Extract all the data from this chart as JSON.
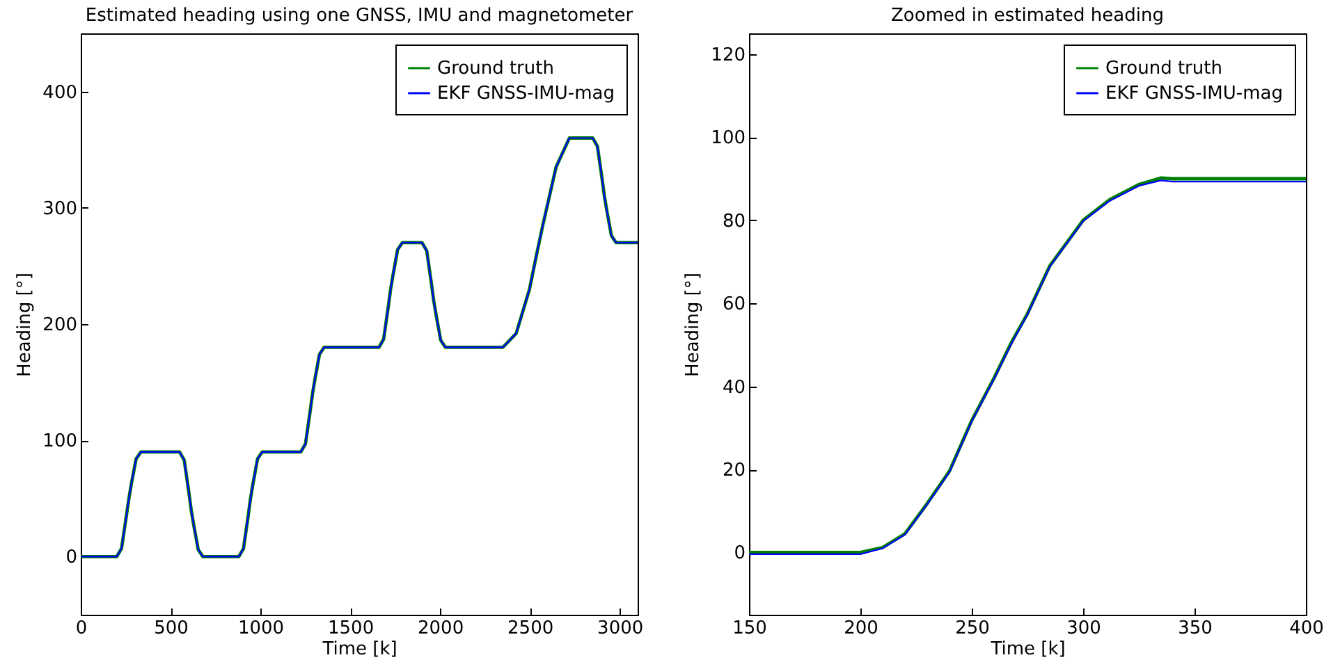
{
  "chart_data": [
    {
      "type": "line",
      "title": "Estimated heading using one GNSS, IMU and magnetometer",
      "xlabel": "Time [k]",
      "ylabel": "Heading [°]",
      "xlim": [
        0,
        3100
      ],
      "xticks": [
        0,
        500,
        1000,
        1500,
        2000,
        2500,
        3000
      ],
      "ylim": [
        -50,
        450
      ],
      "yticks": [
        0,
        100,
        200,
        300,
        400
      ],
      "legend": "top right",
      "x": [
        0,
        200,
        227,
        254,
        268,
        281,
        308,
        335,
        550,
        576,
        602,
        615,
        628,
        654,
        680,
        880,
        906,
        932,
        945,
        958,
        984,
        1010,
        1225,
        1251,
        1277,
        1290,
        1303,
        1329,
        1355,
        1660,
        1686,
        1712,
        1725,
        1738,
        1764,
        1790,
        1900,
        1926,
        1952,
        1965,
        1978,
        2004,
        2030,
        2350,
        2424,
        2498,
        2535,
        2572,
        2646,
        2720,
        2850,
        2876,
        2902,
        2915,
        2928,
        2954,
        2980,
        3100
      ],
      "series": [
        {
          "name": "Ground truth",
          "color": "#008000",
          "values": [
            0,
            0,
            7,
            35,
            50,
            62,
            84,
            90,
            90,
            83,
            55,
            40,
            28,
            6,
            0,
            0,
            7,
            35,
            50,
            62,
            84,
            90,
            90,
            97,
            125,
            140,
            152,
            174,
            180,
            180,
            187,
            215,
            230,
            242,
            264,
            270,
            270,
            263,
            235,
            220,
            208,
            186,
            180,
            180,
            192,
            230,
            258,
            285,
            335,
            360,
            360,
            353,
            325,
            310,
            298,
            276,
            270,
            270
          ]
        },
        {
          "name": "EKF GNSS-IMU-mag",
          "color": "#0000ff",
          "values": [
            0,
            0,
            7,
            35,
            50,
            62,
            84,
            90,
            90,
            83,
            55,
            40,
            28,
            6,
            0,
            0,
            7,
            35,
            50,
            62,
            84,
            90,
            90,
            97,
            125,
            140,
            152,
            174,
            180,
            180,
            187,
            215,
            230,
            242,
            264,
            270,
            270,
            263,
            235,
            220,
            208,
            186,
            180,
            180,
            192,
            230,
            258,
            285,
            335,
            360,
            360,
            353,
            325,
            310,
            298,
            276,
            270,
            270
          ]
        }
      ]
    },
    {
      "type": "line",
      "title": "Zoomed in estimated heading",
      "xlabel": "Time [k]",
      "ylabel": "Heading [°]",
      "xlim": [
        150,
        400
      ],
      "xticks": [
        150,
        200,
        250,
        300,
        350,
        400
      ],
      "ylim": [
        -15,
        125
      ],
      "yticks": [
        0,
        20,
        40,
        60,
        80,
        100,
        120
      ],
      "legend": "top right",
      "series": [
        {
          "name": "Ground truth",
          "color": "#008000",
          "x": [
            150,
            200,
            210,
            220,
            230,
            240,
            250,
            260,
            268,
            275,
            285,
            300,
            312,
            325,
            335,
            340,
            400
          ],
          "values": [
            0,
            0,
            1.2,
            4.5,
            11.8,
            19.6,
            31.8,
            42,
            50.8,
            57.5,
            69,
            80,
            85,
            88.6,
            90.2,
            90,
            90
          ]
        },
        {
          "name": "EKF GNSS-IMU-mag",
          "color": "#0000ff",
          "x": [
            150,
            200,
            210,
            220,
            230,
            240,
            250,
            260,
            268,
            275,
            285,
            300,
            312,
            325,
            335,
            340,
            400
          ],
          "values": [
            -0.4,
            -0.4,
            1,
            4.3,
            11.6,
            19.4,
            31.6,
            41.8,
            50.5,
            57.3,
            68.8,
            79.8,
            84.7,
            88.3,
            89.6,
            89.3,
            89.3
          ]
        }
      ]
    }
  ]
}
